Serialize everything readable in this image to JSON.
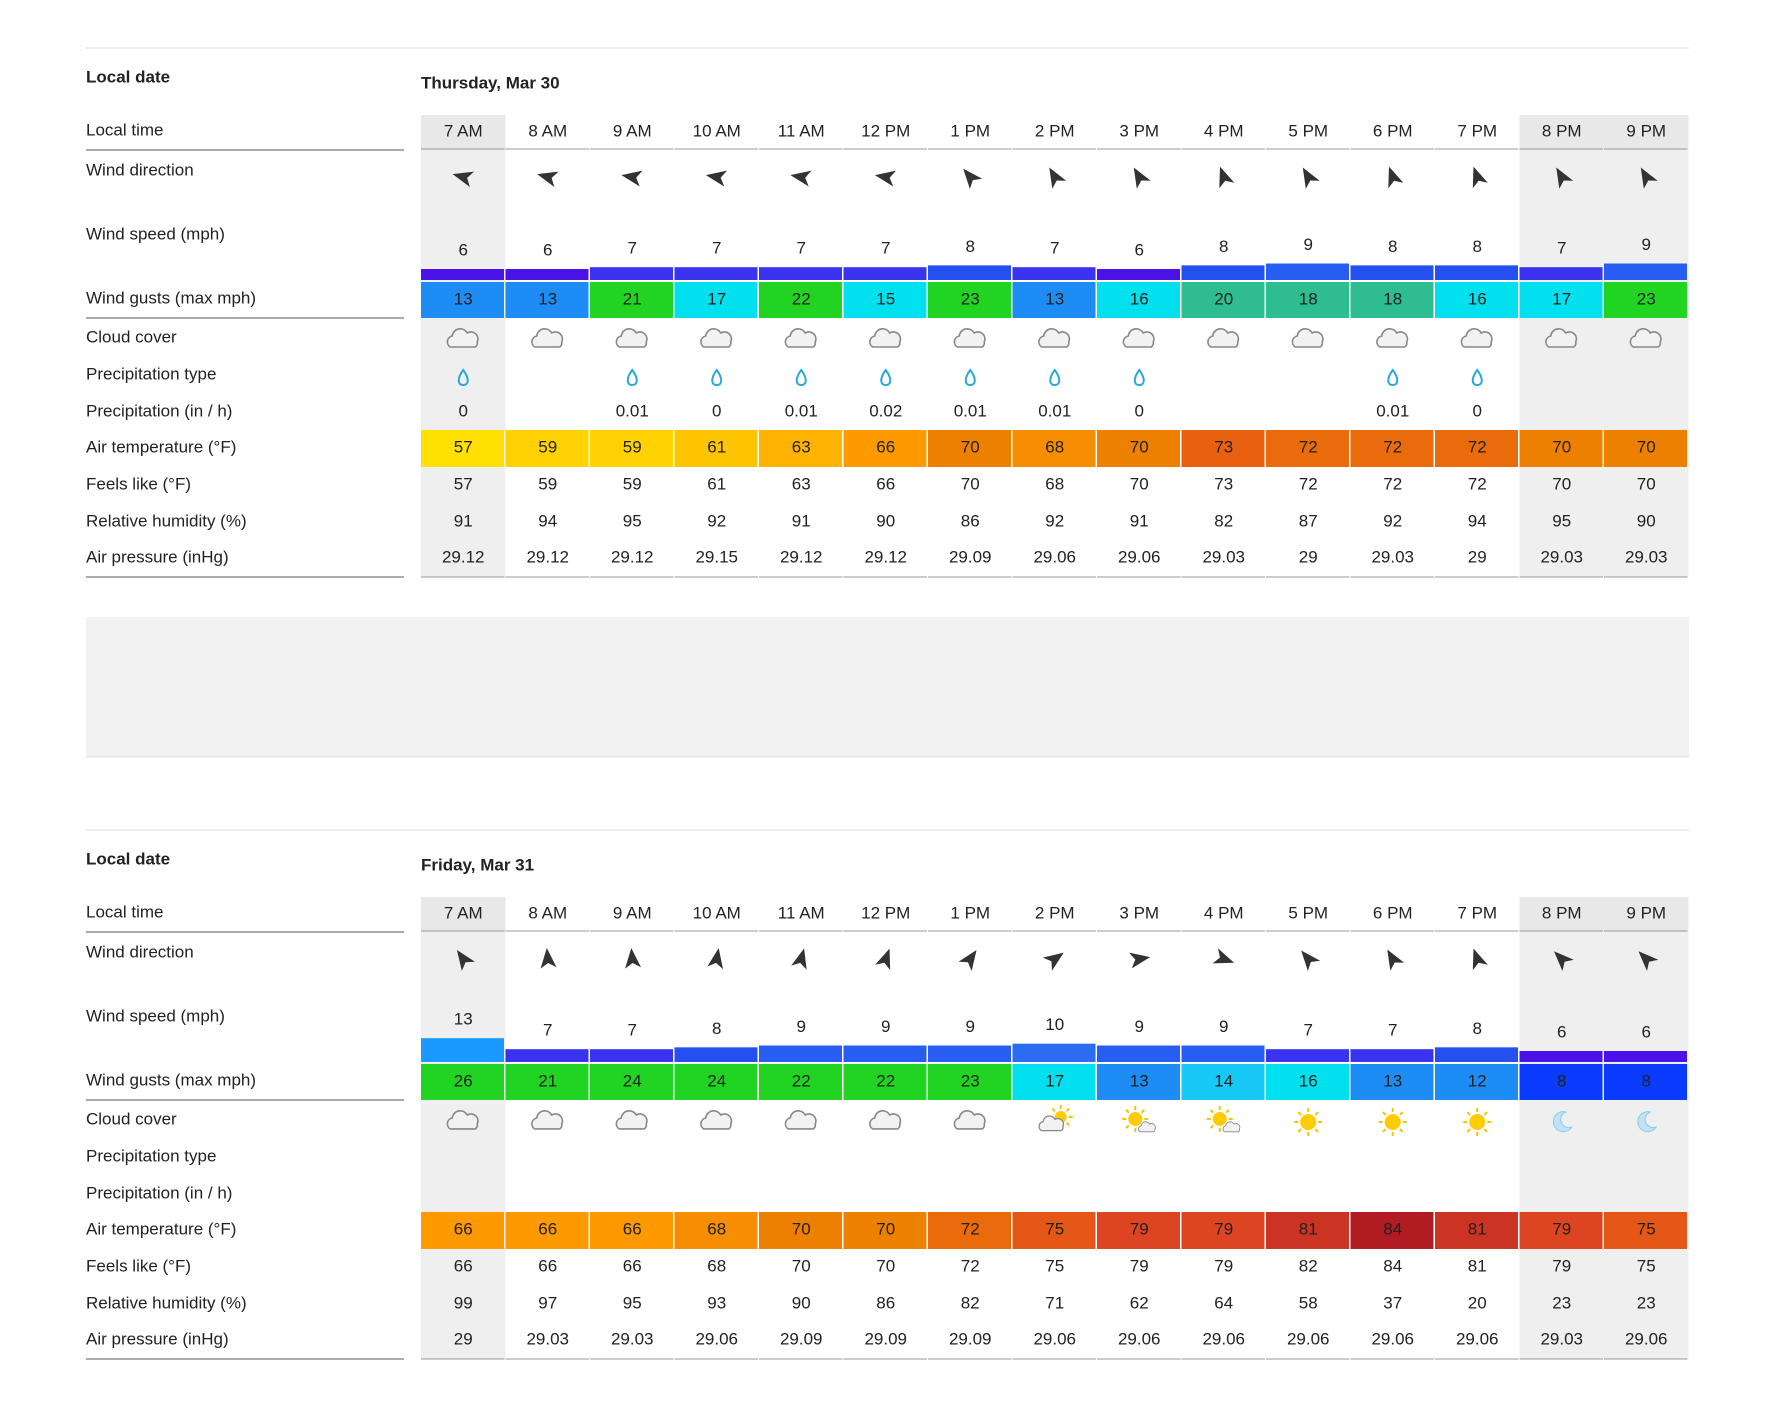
{
  "days": [
    {
      "local_date_label": "Local date",
      "date": "Thursday, Mar 30",
      "rows": [
        {
          "label": "Local time",
          "values": [
            "7 AM",
            "8 AM",
            "9 AM",
            "10 AM",
            "11 AM",
            "12 PM",
            "1 PM",
            "2 PM",
            "3 PM",
            "4 PM",
            "5 PM",
            "6 PM",
            "7 PM",
            "8 PM",
            "9 PM"
          ]
        },
        {
          "label": "Wind direction"
        },
        {
          "label": "Wind speed (mph)",
          "values": [
            6,
            6,
            7,
            7,
            7,
            7,
            8,
            7,
            6,
            8,
            9,
            8,
            8,
            7,
            9
          ]
        },
        {
          "label": "Wind gusts (max mph)",
          "values": [
            13,
            13,
            21,
            17,
            22,
            15,
            23,
            13,
            16,
            20,
            18,
            18,
            16,
            17,
            23
          ]
        },
        {
          "label": "Cloud cover"
        },
        {
          "label": "Precipitation type"
        },
        {
          "label": "Precipitation (in / h)",
          "values": [
            0,
            null,
            0.01,
            0,
            0.01,
            0.02,
            0.01,
            0.01,
            0,
            null,
            null,
            0.01,
            0,
            null,
            null
          ]
        },
        {
          "label": "Air temperature (°F)",
          "values": [
            57,
            59,
            59,
            61,
            63,
            66,
            70,
            68,
            70,
            73,
            72,
            72,
            72,
            70,
            70
          ]
        },
        {
          "label": "Feels like (°F)",
          "values": [
            57,
            59,
            59,
            61,
            63,
            66,
            70,
            68,
            70,
            73,
            72,
            72,
            72,
            70,
            70
          ]
        },
        {
          "label": "Relative humidity (%)",
          "values": [
            91,
            94,
            95,
            92,
            91,
            90,
            86,
            92,
            91,
            82,
            87,
            92,
            94,
            95,
            90
          ]
        },
        {
          "label": "Air pressure (inHg)",
          "values": [
            29.12,
            29.12,
            29.12,
            29.15,
            29.12,
            29.12,
            29.09,
            29.06,
            29.06,
            29.03,
            29,
            29.03,
            29,
            29.03,
            29.03
          ]
        }
      ]
    },
    {
      "local_date_label": "Local date",
      "date": "Friday, Mar 31",
      "rows": [
        {
          "label": "Local time",
          "values": [
            "7 AM",
            "8 AM",
            "9 AM",
            "10 AM",
            "11 AM",
            "12 PM",
            "1 PM",
            "2 PM",
            "3 PM",
            "4 PM",
            "5 PM",
            "6 PM",
            "7 PM",
            "8 PM",
            "9 PM"
          ]
        },
        {
          "label": "Wind direction"
        },
        {
          "label": "Wind speed (mph)",
          "values": [
            13,
            7,
            7,
            8,
            9,
            9,
            9,
            10,
            9,
            9,
            7,
            7,
            8,
            6,
            6
          ]
        },
        {
          "label": "Wind gusts (max mph)",
          "values": [
            26,
            21,
            24,
            24,
            22,
            22,
            23,
            17,
            13,
            14,
            16,
            13,
            12,
            8,
            8
          ]
        },
        {
          "label": "Cloud cover"
        },
        {
          "label": "Precipitation type"
        },
        {
          "label": "Precipitation (in / h)",
          "values": [
            null,
            null,
            null,
            null,
            null,
            null,
            null,
            null,
            null,
            null,
            null,
            null,
            null,
            null,
            null
          ]
        },
        {
          "label": "Air temperature (°F)",
          "values": [
            66,
            66,
            66,
            68,
            70,
            70,
            72,
            75,
            79,
            79,
            81,
            84,
            81,
            79,
            75
          ]
        },
        {
          "label": "Feels like (°F)",
          "values": [
            66,
            66,
            66,
            68,
            70,
            70,
            72,
            75,
            79,
            79,
            82,
            84,
            81,
            79,
            75
          ]
        },
        {
          "label": "Relative humidity (%)",
          "values": [
            99,
            97,
            95,
            93,
            90,
            86,
            82,
            71,
            62,
            64,
            58,
            37,
            20,
            23,
            23
          ]
        },
        {
          "label": "Air pressure (inHg)",
          "values": [
            29,
            29.03,
            29.03,
            29.06,
            29.09,
            29.09,
            29.09,
            29.06,
            29.06,
            29.06,
            29.06,
            29.06,
            29.06,
            29.03,
            29.06
          ]
        }
      ]
    }
  ]
}
